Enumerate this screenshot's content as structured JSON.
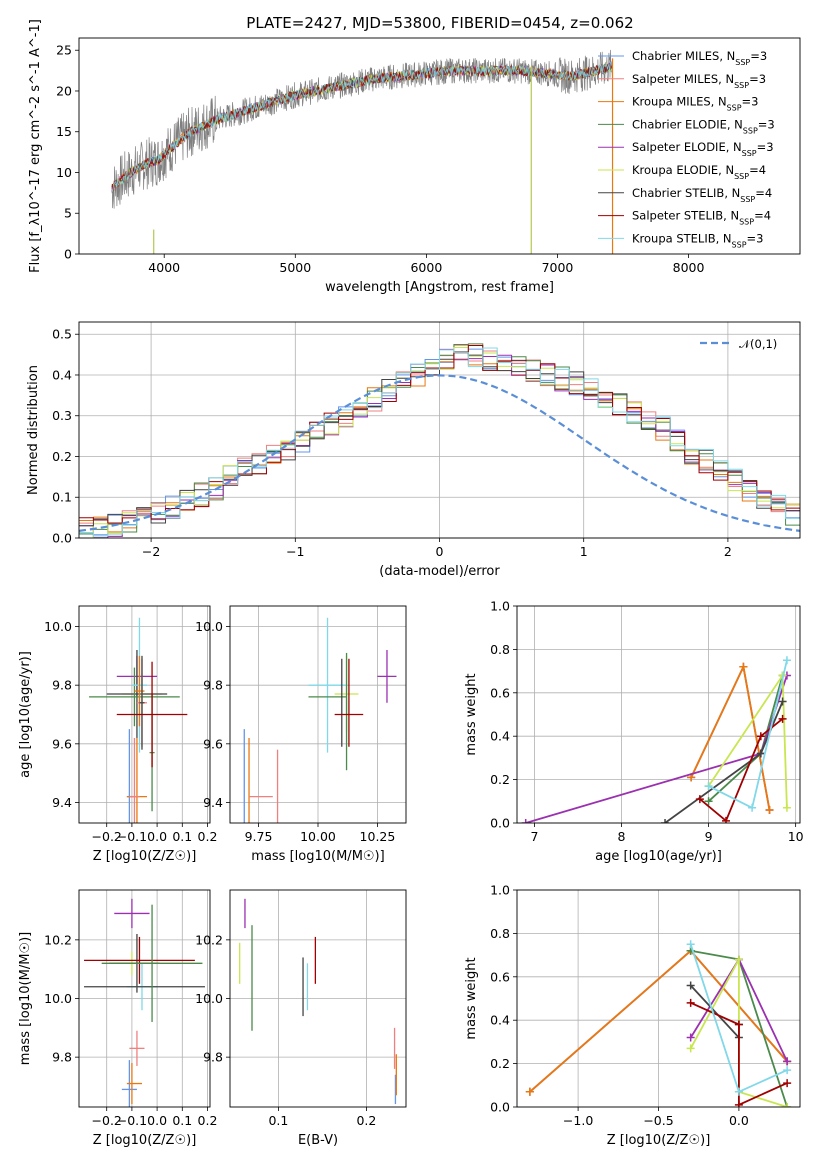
{
  "figure_title": "PLATE=2427, MJD=53800, FIBERID=0454, z=0.062",
  "chart_data": [
    {
      "id": "spectrum",
      "type": "line",
      "xlabel": "wavelength [Angstrom, rest frame]",
      "ylabel": "Flux [f_λ10^-17 erg cm^-2 s^-1 A^-1]",
      "xlim": [
        3350,
        8850
      ],
      "ylim": [
        0,
        26.5
      ],
      "xticks": [
        4000,
        5000,
        6000,
        7000,
        8000
      ],
      "yticks": [
        0,
        5,
        10,
        15,
        20,
        25
      ],
      "grid": false,
      "legend_position": "upper-right",
      "data_range": [
        3600,
        7420
      ],
      "continuum_points": [
        [
          3600,
          8
        ],
        [
          3700,
          9.5
        ],
        [
          3850,
          11
        ],
        [
          3950,
          11.5
        ],
        [
          4050,
          13
        ],
        [
          4200,
          15
        ],
        [
          4400,
          16.5
        ],
        [
          4700,
          18
        ],
        [
          5000,
          19.5
        ],
        [
          5300,
          20.5
        ],
        [
          5600,
          21.5
        ],
        [
          5900,
          22
        ],
        [
          6200,
          22.5
        ],
        [
          6500,
          22.5
        ],
        [
          6700,
          22.5
        ],
        [
          6900,
          22.2
        ],
        [
          7100,
          21.8
        ],
        [
          7300,
          22.5
        ],
        [
          7420,
          23
        ]
      ],
      "spike_lines": [
        [
          3920,
          0,
          3
        ],
        [
          6800,
          0,
          23
        ],
        [
          7420,
          0,
          24
        ]
      ],
      "series": [
        {
          "name": "Chabrier MILES",
          "nssp": "3",
          "color": "#6495ed"
        },
        {
          "name": "Salpeter MILES",
          "nssp": "3",
          "color": "#f08080"
        },
        {
          "name": "Kroupa MILES",
          "nssp": "3",
          "color": "#e87810"
        },
        {
          "name": "Chabrier ELODIE",
          "nssp": "3",
          "color": "#4a8a4a"
        },
        {
          "name": "Salpeter ELODIE",
          "nssp": "3",
          "color": "#9b30b0"
        },
        {
          "name": "Kroupa ELODIE",
          "nssp": "4",
          "color": "#c8e650"
        },
        {
          "name": "Chabrier STELIB",
          "nssp": "4",
          "color": "#444444"
        },
        {
          "name": "Salpeter STELIB",
          "nssp": "4",
          "color": "#a00000"
        },
        {
          "name": "Kroupa STELIB",
          "nssp": "3",
          "color": "#80d8e8"
        }
      ],
      "data_color": "#808080"
    },
    {
      "id": "residuals",
      "type": "histogram",
      "xlabel": "(data-model)/error",
      "ylabel": "Normed distribution",
      "xlim": [
        -2.5,
        2.5
      ],
      "ylim": [
        0,
        0.53
      ],
      "xticks": [
        -2,
        -1,
        0,
        1,
        2
      ],
      "yticks": [
        0.0,
        0.1,
        0.2,
        0.3,
        0.4,
        0.5
      ],
      "grid": true,
      "bin_width": 0.1,
      "gaussian_label": "𝒩(0,1)",
      "gaussian_color": "#5a8fd8",
      "legend_position": "upper-right",
      "base_values": [
        0.02,
        0.025,
        0.03,
        0.04,
        0.05,
        0.06,
        0.075,
        0.09,
        0.105,
        0.12,
        0.15,
        0.17,
        0.18,
        0.2,
        0.22,
        0.24,
        0.26,
        0.28,
        0.3,
        0.32,
        0.34,
        0.36,
        0.38,
        0.4,
        0.42,
        0.44,
        0.45,
        0.45,
        0.44,
        0.43,
        0.42,
        0.41,
        0.4,
        0.39,
        0.38,
        0.37,
        0.35,
        0.33,
        0.31,
        0.29,
        0.27,
        0.24,
        0.21,
        0.19,
        0.17,
        0.14,
        0.12,
        0.1,
        0.08,
        0.06
      ]
    },
    {
      "id": "age-vs-Z",
      "type": "errorbar",
      "xlabel": "Z [log10(Z/Z☉)]",
      "ylabel": "age  [log10(age/yr)]",
      "xlim": [
        -0.31,
        0.21
      ],
      "ylim": [
        9.33,
        10.07
      ],
      "xticks": [
        -0.2,
        -0.1,
        0.0,
        0.1,
        0.2
      ],
      "yticks": [
        9.4,
        9.6,
        9.8,
        10.0
      ],
      "points": [
        {
          "x": -0.11,
          "xerr": 0.01,
          "y": 9.42,
          "yerr": 0.23,
          "series": 0
        },
        {
          "x": -0.08,
          "xerr": 0.04,
          "y": 9.42,
          "yerr": 0.2,
          "series": 2
        },
        {
          "x": -0.09,
          "xerr": 0.02,
          "y": 9.42,
          "yerr": 0.2,
          "series": 1
        },
        {
          "x": -0.02,
          "xerr": 0.01,
          "y": 9.57,
          "yerr": 0.2,
          "series": 3
        },
        {
          "x": -0.08,
          "xerr": 0.08,
          "y": 9.83,
          "yerr": 0.07,
          "series": 4
        },
        {
          "x": -0.06,
          "xerr": 0.08,
          "y": 9.77,
          "yerr": 0.07,
          "series": 5
        },
        {
          "x": -0.08,
          "xerr": 0.12,
          "y": 9.77,
          "yerr": 0.15,
          "series": 6
        },
        {
          "x": -0.09,
          "xerr": 0.18,
          "y": 9.76,
          "yerr": 0.1,
          "series": 3
        },
        {
          "x": -0.07,
          "xerr": 0.03,
          "y": 9.8,
          "yerr": 0.23,
          "series": 8
        },
        {
          "x": -0.07,
          "xerr": 0.02,
          "y": 9.78,
          "yerr": 0.12,
          "series": 2
        },
        {
          "x": -0.06,
          "xerr": 0.02,
          "y": 9.74,
          "yerr": 0.15,
          "series": 1
        },
        {
          "x": -0.06,
          "xerr": 0.01,
          "y": 9.74,
          "yerr": 0.16,
          "series": 6
        },
        {
          "x": -0.02,
          "xerr": 0.14,
          "y": 9.7,
          "yerr": 0.18,
          "series": 7
        }
      ]
    },
    {
      "id": "age-vs-mass",
      "type": "errorbar",
      "xlabel": "mass [log10(M/M☉)]",
      "ylabel": "",
      "xlim": [
        9.63,
        10.37
      ],
      "ylim": [
        9.33,
        10.07
      ],
      "xticks": [
        9.75,
        10.0,
        10.25
      ],
      "yticks": [
        9.4,
        9.6,
        9.8,
        10.0
      ],
      "points": [
        {
          "x": 9.69,
          "xerr": 0.0,
          "y": 9.42,
          "yerr": 0.23,
          "series": 0
        },
        {
          "x": 9.71,
          "xerr": 0.0,
          "y": 9.42,
          "yerr": 0.2,
          "series": 2
        },
        {
          "x": 9.76,
          "xerr": 0.05,
          "y": 9.42,
          "yerr": 0.0,
          "series": 1
        },
        {
          "x": 9.83,
          "xerr": 0.0,
          "y": 9.42,
          "yerr": 0.16,
          "series": 1
        },
        {
          "x": 10.29,
          "xerr": 0.04,
          "y": 9.83,
          "yerr": 0.09,
          "series": 4
        },
        {
          "x": 10.12,
          "xerr": 0.05,
          "y": 9.77,
          "yerr": 0.13,
          "series": 5
        },
        {
          "x": 10.04,
          "xerr": 0.0,
          "y": 9.8,
          "yerr": 0.23,
          "series": 8
        },
        {
          "x": 10.04,
          "xerr": 0.08,
          "y": 9.8,
          "yerr": 0.0,
          "series": 8
        },
        {
          "x": 10.12,
          "xerr": 0.0,
          "y": 9.71,
          "yerr": 0.2,
          "series": 3
        },
        {
          "x": 10.04,
          "xerr": 0.08,
          "y": 9.76,
          "yerr": 0.0,
          "series": 3
        },
        {
          "x": 10.1,
          "xerr": 0.0,
          "y": 9.74,
          "yerr": 0.15,
          "series": 6
        },
        {
          "x": 10.13,
          "xerr": 0.0,
          "y": 9.74,
          "yerr": 0.15,
          "series": 7
        },
        {
          "x": 10.13,
          "xerr": 0.06,
          "y": 9.7,
          "yerr": 0.0,
          "series": 7
        }
      ]
    },
    {
      "id": "weight-vs-age",
      "type": "line",
      "xlabel": "age  [log10(age/yr)]",
      "ylabel": "mass weight",
      "xlim": [
        6.8,
        10.05
      ],
      "ylim": [
        0,
        1.0
      ],
      "xticks": [
        7,
        8,
        9,
        10
      ],
      "yticks": [
        0.0,
        0.2,
        0.4,
        0.6,
        0.8,
        1.0
      ],
      "grid": true,
      "series": [
        {
          "series": 0,
          "points": [
            [
              8.8,
              0.21
            ],
            [
              9.4,
              0.72
            ],
            [
              9.7,
              0.06
            ]
          ]
        },
        {
          "series": 1,
          "points": [
            [
              8.8,
              0.21
            ],
            [
              9.4,
              0.72
            ],
            [
              9.7,
              0.06
            ]
          ]
        },
        {
          "series": 2,
          "points": [
            [
              8.8,
              0.21
            ],
            [
              9.4,
              0.72
            ],
            [
              9.7,
              0.06
            ]
          ]
        },
        {
          "series": 3,
          "points": [
            [
              9.0,
              0.1
            ],
            [
              9.6,
              0.32
            ],
            [
              9.85,
              0.68
            ]
          ]
        },
        {
          "series": 4,
          "points": [
            [
              6.9,
              0.0
            ],
            [
              9.6,
              0.32
            ],
            [
              9.9,
              0.68
            ]
          ]
        },
        {
          "series": 5,
          "points": [
            [
              9.0,
              0.17
            ],
            [
              9.85,
              0.68
            ],
            [
              9.9,
              0.07
            ]
          ]
        },
        {
          "series": 6,
          "points": [
            [
              8.5,
              0.0
            ],
            [
              9.6,
              0.32
            ],
            [
              9.85,
              0.56
            ]
          ]
        },
        {
          "series": 7,
          "points": [
            [
              8.9,
              0.11
            ],
            [
              9.2,
              0.01
            ],
            [
              9.6,
              0.4
            ],
            [
              9.85,
              0.48
            ]
          ]
        },
        {
          "series": 8,
          "points": [
            [
              9.0,
              0.17
            ],
            [
              9.5,
              0.07
            ],
            [
              9.9,
              0.75
            ]
          ]
        }
      ]
    },
    {
      "id": "mass-vs-Z",
      "type": "errorbar",
      "xlabel": "Z [log10(Z/Z☉)]",
      "ylabel": "mass [log10(M/M☉)]",
      "xlim": [
        -0.31,
        0.21
      ],
      "ylim": [
        9.63,
        10.37
      ],
      "xticks": [
        -0.2,
        -0.1,
        0.0,
        0.1,
        0.2
      ],
      "yticks": [
        9.8,
        10.0,
        10.2
      ],
      "points": [
        {
          "x": -0.11,
          "xerr": 0.03,
          "y": 9.69,
          "yerr": 0.1,
          "series": 0
        },
        {
          "x": -0.09,
          "xerr": 0.03,
          "y": 9.71,
          "yerr": 0.0,
          "series": 2
        },
        {
          "x": -0.1,
          "xerr": 0.0,
          "y": 9.71,
          "yerr": 0.07,
          "series": 2
        },
        {
          "x": -0.08,
          "xerr": 0.03,
          "y": 9.83,
          "yerr": 0.0,
          "series": 1
        },
        {
          "x": -0.08,
          "xerr": 0.0,
          "y": 9.83,
          "yerr": 0.06,
          "series": 1
        },
        {
          "x": -0.1,
          "xerr": 0.07,
          "y": 10.29,
          "yerr": 0.05,
          "series": 4
        },
        {
          "x": -0.1,
          "xerr": 0.06,
          "y": 10.12,
          "yerr": 0.04,
          "series": 5
        },
        {
          "x": -0.09,
          "xerr": 0.1,
          "y": 10.12,
          "yerr": 0.0,
          "series": 6
        },
        {
          "x": -0.08,
          "xerr": 0.0,
          "y": 10.12,
          "yerr": 0.1,
          "series": 6
        },
        {
          "x": -0.06,
          "xerr": 0.06,
          "y": 10.04,
          "yerr": 0.0,
          "series": 8
        },
        {
          "x": -0.06,
          "xerr": 0.0,
          "y": 10.04,
          "yerr": 0.08,
          "series": 8
        },
        {
          "x": -0.05,
          "xerr": 0.24,
          "y": 10.04,
          "yerr": 0.0,
          "series": 6
        },
        {
          "x": -0.07,
          "xerr": 0.0,
          "y": 10.13,
          "yerr": 0.08,
          "series": 7
        },
        {
          "x": -0.07,
          "xerr": 0.22,
          "y": 10.13,
          "yerr": 0.0,
          "series": 7
        },
        {
          "x": -0.02,
          "xerr": 0.2,
          "y": 10.12,
          "yerr": 0.0,
          "series": 3
        },
        {
          "x": -0.02,
          "xerr": 0.0,
          "y": 10.12,
          "yerr": 0.2,
          "series": 3
        }
      ]
    },
    {
      "id": "mass-vs-ebv",
      "type": "errorbar",
      "xlabel": "E(B-V)",
      "ylabel": "",
      "xlim": [
        0.045,
        0.245
      ],
      "ylim": [
        9.63,
        10.37
      ],
      "xticks": [
        0.1,
        0.2
      ],
      "yticks": [
        9.8,
        10.0,
        10.2
      ],
      "points": [
        {
          "x": 0.233,
          "xerr": 0.0,
          "y": 9.69,
          "yerr": 0.05,
          "series": 0
        },
        {
          "x": 0.234,
          "xerr": 0.0,
          "y": 9.74,
          "yerr": 0.07,
          "series": 2
        },
        {
          "x": 0.232,
          "xerr": 0.0,
          "y": 9.83,
          "yerr": 0.07,
          "series": 1
        },
        {
          "x": 0.062,
          "xerr": 0.0,
          "y": 10.29,
          "yerr": 0.05,
          "series": 4
        },
        {
          "x": 0.056,
          "xerr": 0.0,
          "y": 10.12,
          "yerr": 0.07,
          "series": 5
        },
        {
          "x": 0.07,
          "xerr": 0.0,
          "y": 10.07,
          "yerr": 0.18,
          "series": 3
        },
        {
          "x": 0.128,
          "xerr": 0.0,
          "y": 10.04,
          "yerr": 0.1,
          "series": 6
        },
        {
          "x": 0.133,
          "xerr": 0.0,
          "y": 10.04,
          "yerr": 0.08,
          "series": 8
        },
        {
          "x": 0.142,
          "xerr": 0.0,
          "y": 10.13,
          "yerr": 0.08,
          "series": 7
        }
      ]
    },
    {
      "id": "weight-vs-Z",
      "type": "line",
      "xlabel": "Z [log10(Z/Z☉)]",
      "ylabel": "mass weight",
      "xlim": [
        -1.38,
        0.38
      ],
      "ylim": [
        0,
        1.0
      ],
      "xticks": [
        -1.0,
        -0.5,
        0.0
      ],
      "yticks": [
        0.0,
        0.2,
        0.4,
        0.6,
        0.8,
        1.0
      ],
      "grid": true,
      "series": [
        {
          "series": 0,
          "points": [
            [
              -1.3,
              0.07
            ],
            [
              -0.3,
              0.72
            ],
            [
              0.3,
              0.21
            ]
          ]
        },
        {
          "series": 1,
          "points": [
            [
              -1.3,
              0.07
            ],
            [
              -0.3,
              0.72
            ],
            [
              0.3,
              0.21
            ]
          ]
        },
        {
          "series": 2,
          "points": [
            [
              -1.3,
              0.07
            ],
            [
              -0.3,
              0.72
            ],
            [
              0.3,
              0.21
            ]
          ]
        },
        {
          "series": 3,
          "points": [
            [
              -0.3,
              0.72
            ],
            [
              0.0,
              0.68
            ],
            [
              0.3,
              0.0
            ]
          ]
        },
        {
          "series": 4,
          "points": [
            [
              -0.3,
              0.32
            ],
            [
              0.0,
              0.68
            ],
            [
              0.3,
              0.21
            ]
          ]
        },
        {
          "series": 5,
          "points": [
            [
              -0.3,
              0.27
            ],
            [
              0.0,
              0.68
            ],
            [
              0.0,
              0.07
            ],
            [
              0.3,
              0.0
            ]
          ]
        },
        {
          "series": 6,
          "points": [
            [
              -0.3,
              0.56
            ],
            [
              0.0,
              0.32
            ],
            [
              0.0,
              0.38
            ]
          ]
        },
        {
          "series": 7,
          "points": [
            [
              -0.3,
              0.48
            ],
            [
              0.0,
              0.38
            ],
            [
              0.0,
              0.01
            ],
            [
              0.3,
              0.11
            ]
          ]
        },
        {
          "series": 8,
          "points": [
            [
              -0.3,
              0.75
            ],
            [
              0.0,
              0.07
            ],
            [
              0.3,
              0.17
            ]
          ]
        }
      ]
    }
  ]
}
